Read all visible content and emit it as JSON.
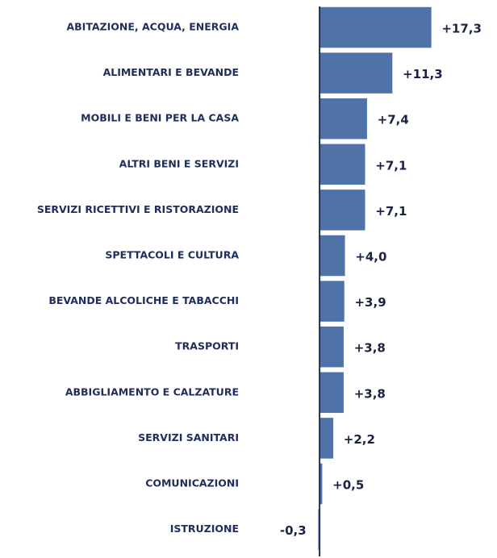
{
  "chart_data": {
    "type": "hbar",
    "categories": [
      "ABITAZIONE, ACQUA, ENERGIA",
      "ALIMENTARI E BEVANDE",
      "MOBILI E BENI PER LA CASA",
      "ALTRI BENI E SERVIZI",
      "SERVIZI RICETTIVI E RISTORAZIONE",
      "SPETTACOLI E CULTURA",
      "BEVANDE ALCOLICHE E TABACCHI",
      "TRASPORTI",
      "ABBIGLIAMENTO E CALZATURE",
      "SERVIZI SANITARI",
      "COMUNICAZIONI",
      "ISTRUZIONE"
    ],
    "values": [
      17.3,
      11.3,
      7.4,
      7.1,
      7.1,
      4.0,
      3.9,
      3.8,
      3.8,
      2.2,
      0.5,
      -0.3
    ],
    "value_labels": [
      "+17,3",
      "+11,3",
      "+7,4",
      "+7,1",
      "+7,1",
      "+4,0",
      "+3,9",
      "+3,8",
      "+3,8",
      "+2,2",
      "+0,5",
      "-0,3"
    ],
    "color": "#4f73a8",
    "xlim": [
      -2,
      18
    ]
  }
}
